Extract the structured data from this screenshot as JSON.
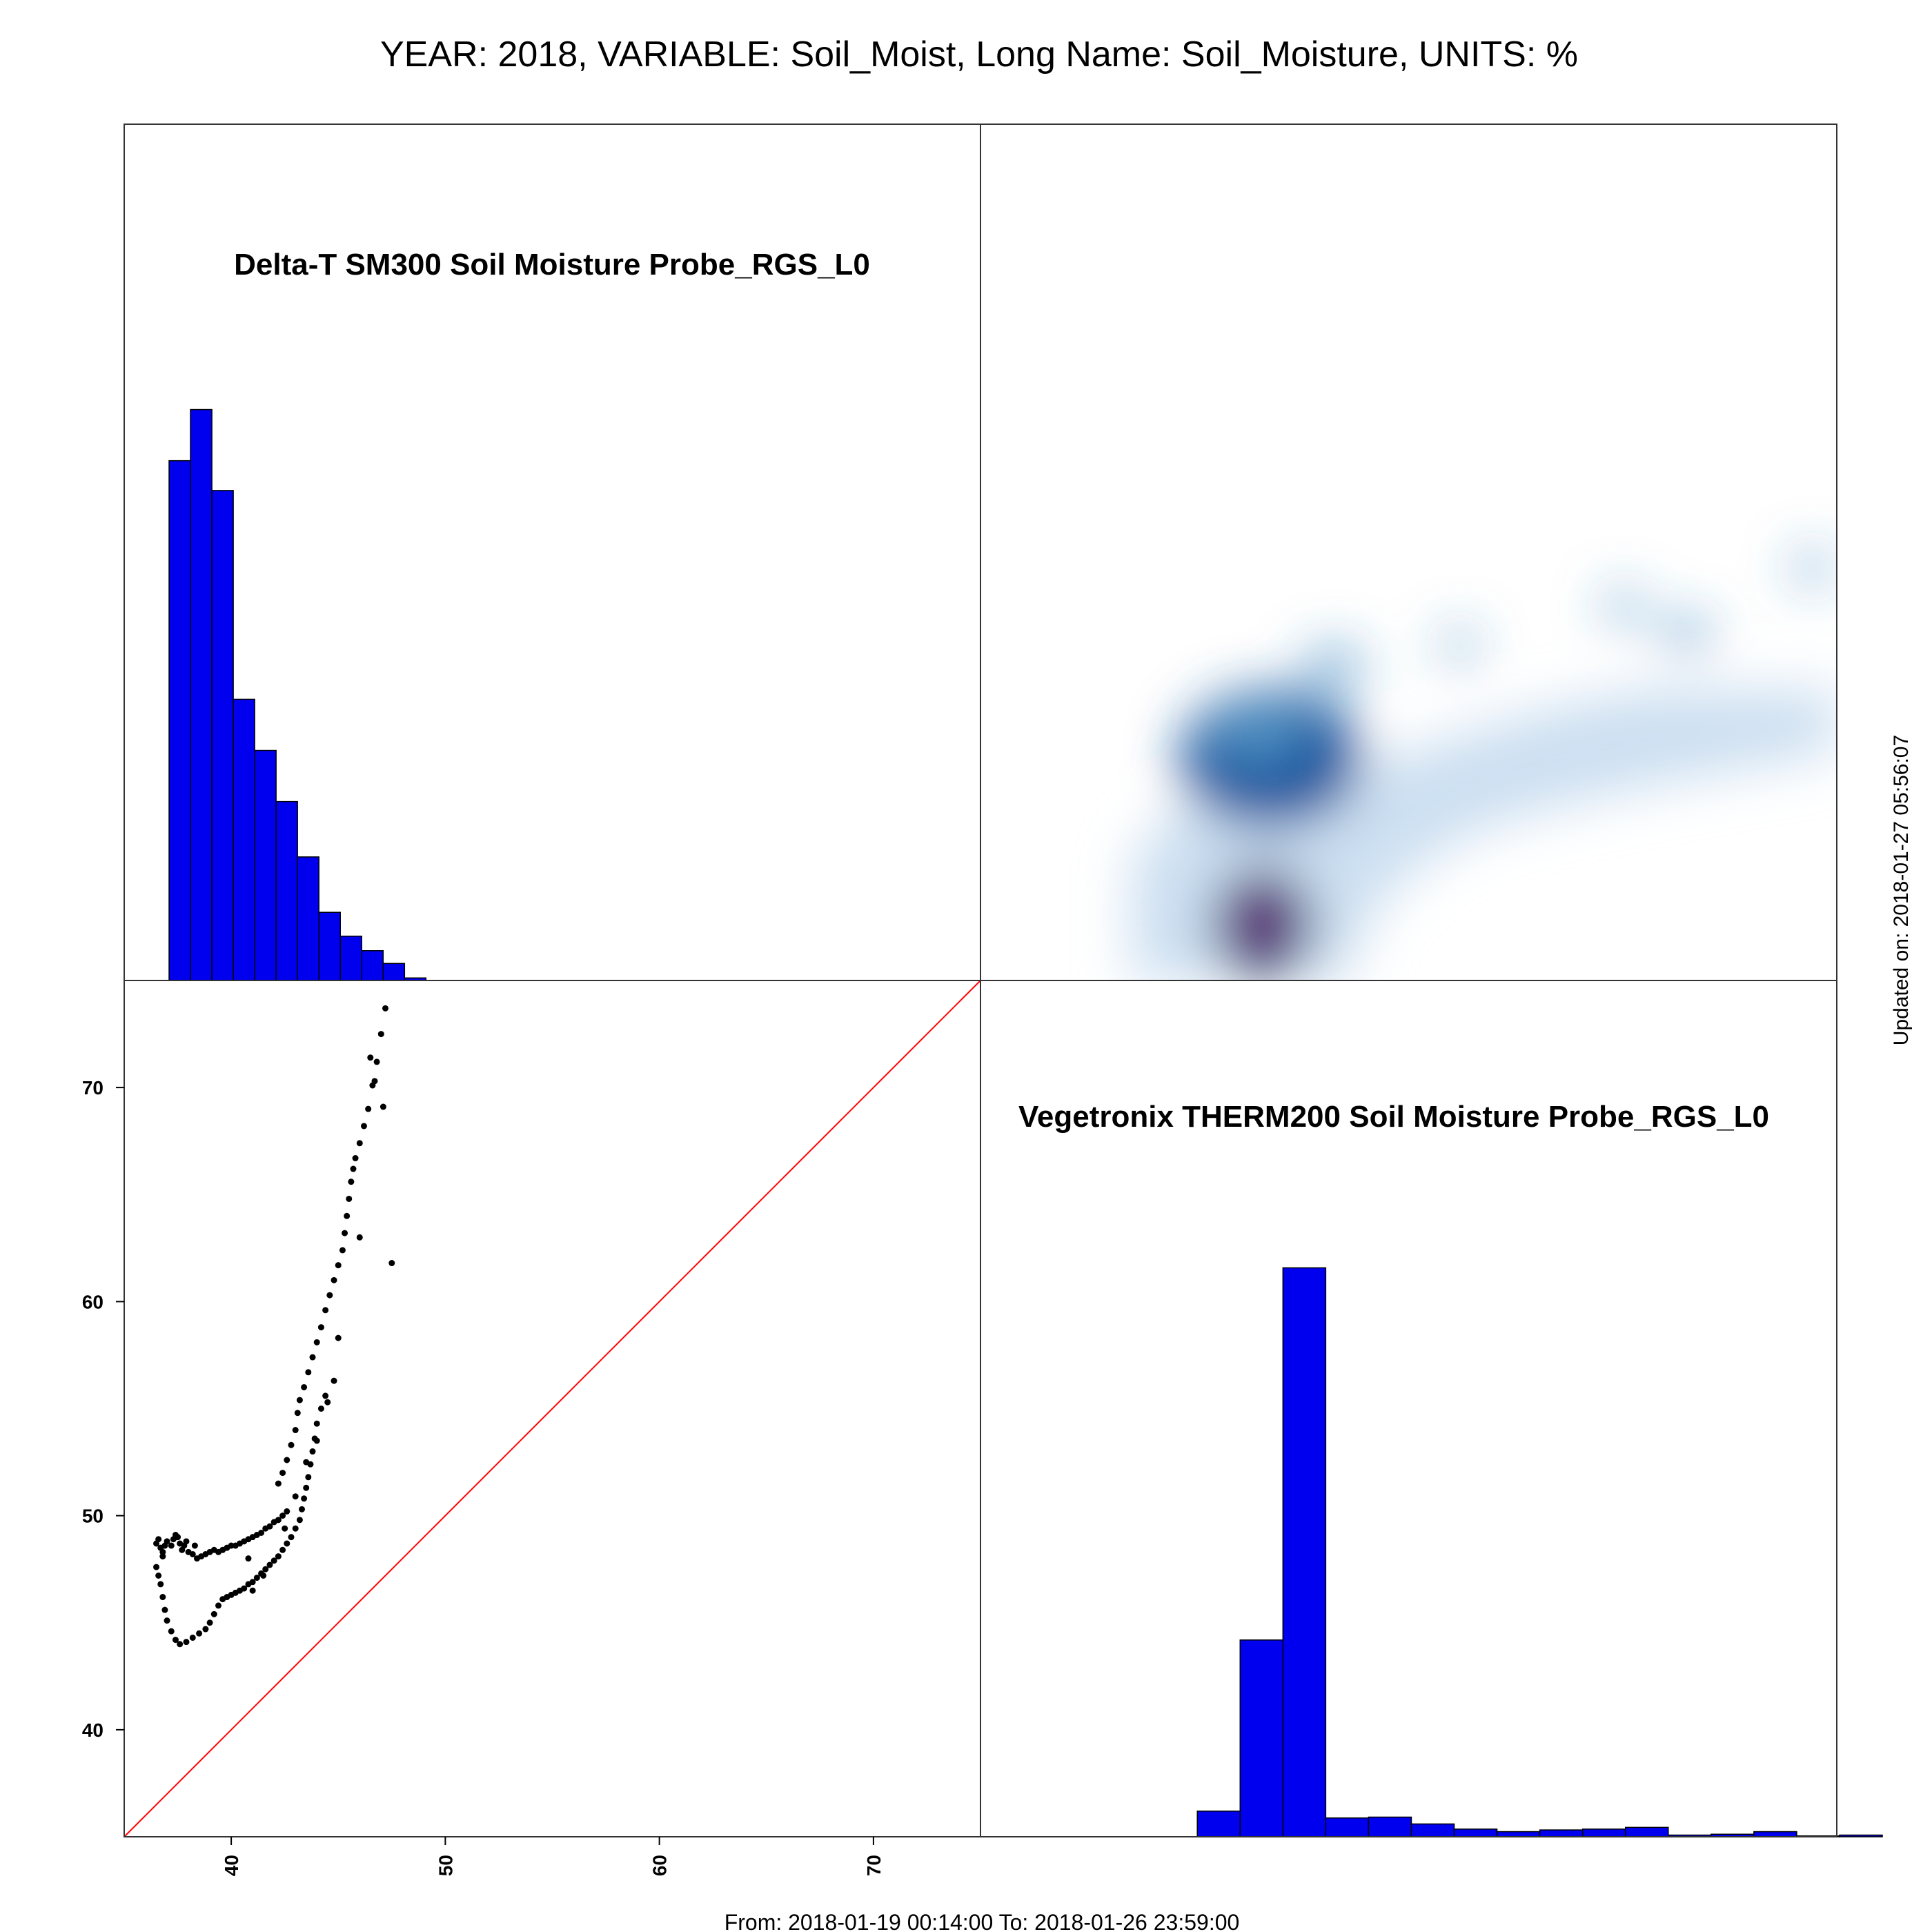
{
  "title": "YEAR: 2018, VARIABLE: Soil_Moist, Long Name: Soil_Moisture, UNITS: %",
  "date_range": "From: 2018-01-19 00:14:00 To: 2018-01-26 23:59:00",
  "updated": "Updated on: 2018-01-27 05:56:07",
  "chart_data": [
    {
      "type": "bar",
      "panel": "top-left",
      "title": "Delta-T SM300 Soil Moisture Probe_RGS_L0",
      "xlim": [
        35,
        75
      ],
      "bin_edges": [
        36,
        37,
        38,
        39,
        40,
        41,
        42,
        43,
        44,
        45,
        46,
        47,
        48
      ],
      "values": [
        0.61,
        0.67,
        0.575,
        0.33,
        0.27,
        0.21,
        0.145,
        0.08,
        0.052,
        0.035,
        0.02,
        0.003
      ],
      "color": "#0000ee"
    },
    {
      "type": "heatmap",
      "panel": "top-right",
      "description_colors": [
        "#c6dbef",
        "#6baed6",
        "#2171b5",
        "#08306b",
        "#7a1e7a"
      ],
      "x_range": [
        44,
        78
      ],
      "y_range": [
        34,
        52
      ],
      "blobs": [
        {
          "x": 49.5,
          "y": 41.4,
          "w": 1.0,
          "h": 0.9
        },
        {
          "x": 49.0,
          "y": 42.2,
          "w": 0.5,
          "h": 0.35
        },
        {
          "x": 52.0,
          "y": 44.5,
          "w": 0.32,
          "h": 0.25
        },
        {
          "x": 57.0,
          "y": 45.2,
          "w": 0.18,
          "h": 0.2
        },
        {
          "x": 63.5,
          "y": 46.5,
          "w": 0.2,
          "h": 0.2
        },
        {
          "x": 66.0,
          "y": 45.6,
          "w": 0.25,
          "h": 0.22
        },
        {
          "x": 71.0,
          "y": 47.8,
          "w": 0.2,
          "h": 0.2
        }
      ]
    },
    {
      "type": "scatter",
      "panel": "bottom-left",
      "xlim": [
        35,
        75
      ],
      "ylim": [
        35,
        75
      ],
      "ticks": [
        40,
        50,
        60,
        70
      ],
      "tick_labels": [
        "40",
        "50",
        "60",
        "70"
      ],
      "reference_line": {
        "from": [
          35,
          35
        ],
        "to": [
          75,
          75
        ],
        "color": "#ff0000"
      },
      "points": [
        [
          36.5,
          48.7
        ],
        [
          36.6,
          48.9
        ],
        [
          36.7,
          48.5
        ],
        [
          36.8,
          48.3
        ],
        [
          36.9,
          48.6
        ],
        [
          37.0,
          48.8
        ],
        [
          37.2,
          48.6
        ],
        [
          37.3,
          48.9
        ],
        [
          37.5,
          49.0
        ],
        [
          37.6,
          48.7
        ],
        [
          37.7,
          48.4
        ],
        [
          37.8,
          48.6
        ],
        [
          38.0,
          48.3
        ],
        [
          38.2,
          48.2
        ],
        [
          38.4,
          48.0
        ],
        [
          38.6,
          48.1
        ],
        [
          38.8,
          48.2
        ],
        [
          39.0,
          48.3
        ],
        [
          39.2,
          48.4
        ],
        [
          39.4,
          48.3
        ],
        [
          39.6,
          48.4
        ],
        [
          39.8,
          48.5
        ],
        [
          40.0,
          48.6
        ],
        [
          40.2,
          48.6
        ],
        [
          40.4,
          48.7
        ],
        [
          40.6,
          48.8
        ],
        [
          40.8,
          48.9
        ],
        [
          41.0,
          49.0
        ],
        [
          41.2,
          49.1
        ],
        [
          41.4,
          49.2
        ],
        [
          41.6,
          49.4
        ],
        [
          41.8,
          49.5
        ],
        [
          42.0,
          49.7
        ],
        [
          42.2,
          49.8
        ],
        [
          42.4,
          50.0
        ],
        [
          42.6,
          50.2
        ],
        [
          37.4,
          49.1
        ],
        [
          37.9,
          48.8
        ],
        [
          38.3,
          48.6
        ],
        [
          36.8,
          48.1
        ],
        [
          36.5,
          47.6
        ],
        [
          36.6,
          47.2
        ],
        [
          36.7,
          46.8
        ],
        [
          36.8,
          46.2
        ],
        [
          36.9,
          45.6
        ],
        [
          37.0,
          45.1
        ],
        [
          37.2,
          44.6
        ],
        [
          37.4,
          44.2
        ],
        [
          37.6,
          44.0
        ],
        [
          37.9,
          44.1
        ],
        [
          38.2,
          44.3
        ],
        [
          38.5,
          44.5
        ],
        [
          38.8,
          44.7
        ],
        [
          39.0,
          45.0
        ],
        [
          39.2,
          45.4
        ],
        [
          39.4,
          45.8
        ],
        [
          39.6,
          46.1
        ],
        [
          39.8,
          46.2
        ],
        [
          40.0,
          46.3
        ],
        [
          40.2,
          46.4
        ],
        [
          40.4,
          46.5
        ],
        [
          40.6,
          46.6
        ],
        [
          40.8,
          46.8
        ],
        [
          41.0,
          46.9
        ],
        [
          41.2,
          47.1
        ],
        [
          41.4,
          47.3
        ],
        [
          41.6,
          47.5
        ],
        [
          41.8,
          47.7
        ],
        [
          42.0,
          47.9
        ],
        [
          42.2,
          48.1
        ],
        [
          42.4,
          48.4
        ],
        [
          42.6,
          48.7
        ],
        [
          42.8,
          49.0
        ],
        [
          43.0,
          49.4
        ],
        [
          43.2,
          49.8
        ],
        [
          43.3,
          50.3
        ],
        [
          43.4,
          50.8
        ],
        [
          43.5,
          51.3
        ],
        [
          43.6,
          51.8
        ],
        [
          43.7,
          52.4
        ],
        [
          43.8,
          53.0
        ],
        [
          43.9,
          53.6
        ],
        [
          44.0,
          54.3
        ],
        [
          44.2,
          55.0
        ],
        [
          44.4,
          55.6
        ],
        [
          42.2,
          51.5
        ],
        [
          42.4,
          52.0
        ],
        [
          42.6,
          52.6
        ],
        [
          42.8,
          53.3
        ],
        [
          43.0,
          54.0
        ],
        [
          43.1,
          54.8
        ],
        [
          43.2,
          55.4
        ],
        [
          43.4,
          56.0
        ],
        [
          43.6,
          56.7
        ],
        [
          43.8,
          57.4
        ],
        [
          44.0,
          58.1
        ],
        [
          44.2,
          58.8
        ],
        [
          44.4,
          59.6
        ],
        [
          44.6,
          60.3
        ],
        [
          44.8,
          61.0
        ],
        [
          45.0,
          61.7
        ],
        [
          45.2,
          62.4
        ],
        [
          45.3,
          63.2
        ],
        [
          45.4,
          64.0
        ],
        [
          45.5,
          64.8
        ],
        [
          45.6,
          65.6
        ],
        [
          45.7,
          66.2
        ],
        [
          45.8,
          66.7
        ],
        [
          46.0,
          67.4
        ],
        [
          46.2,
          68.2
        ],
        [
          46.4,
          69.0
        ],
        [
          46.6,
          70.1
        ],
        [
          46.8,
          71.2
        ],
        [
          47.0,
          72.5
        ],
        [
          47.2,
          73.7
        ],
        [
          46.5,
          71.4
        ],
        [
          46.7,
          70.3
        ],
        [
          47.1,
          69.1
        ],
        [
          47.5,
          61.8
        ],
        [
          46.0,
          63.0
        ],
        [
          45.0,
          58.3
        ],
        [
          44.8,
          56.3
        ],
        [
          44.5,
          55.3
        ],
        [
          44.0,
          53.5
        ],
        [
          43.5,
          52.5
        ],
        [
          43.0,
          50.9
        ],
        [
          42.5,
          49.4
        ],
        [
          41.5,
          47.2
        ],
        [
          40.8,
          48.0
        ],
        [
          41.0,
          46.5
        ]
      ],
      "color": "#000000"
    },
    {
      "type": "bar",
      "panel": "bottom-right",
      "title": "Vegetronix THERM200 Soil Moisture Probe_RGS_L0",
      "xlim": [
        35,
        75
      ],
      "bin_edges": [
        44,
        46,
        48,
        50,
        52,
        54,
        56,
        58,
        60,
        62,
        64,
        66,
        68,
        70,
        72,
        74,
        76
      ],
      "values": [
        0.03,
        0.23,
        0.665,
        0.022,
        0.023,
        0.015,
        0.009,
        0.006,
        0.008,
        0.009,
        0.011,
        0.002,
        0.003,
        0.006,
        0.001,
        0.002
      ],
      "color": "#0000ee"
    }
  ]
}
